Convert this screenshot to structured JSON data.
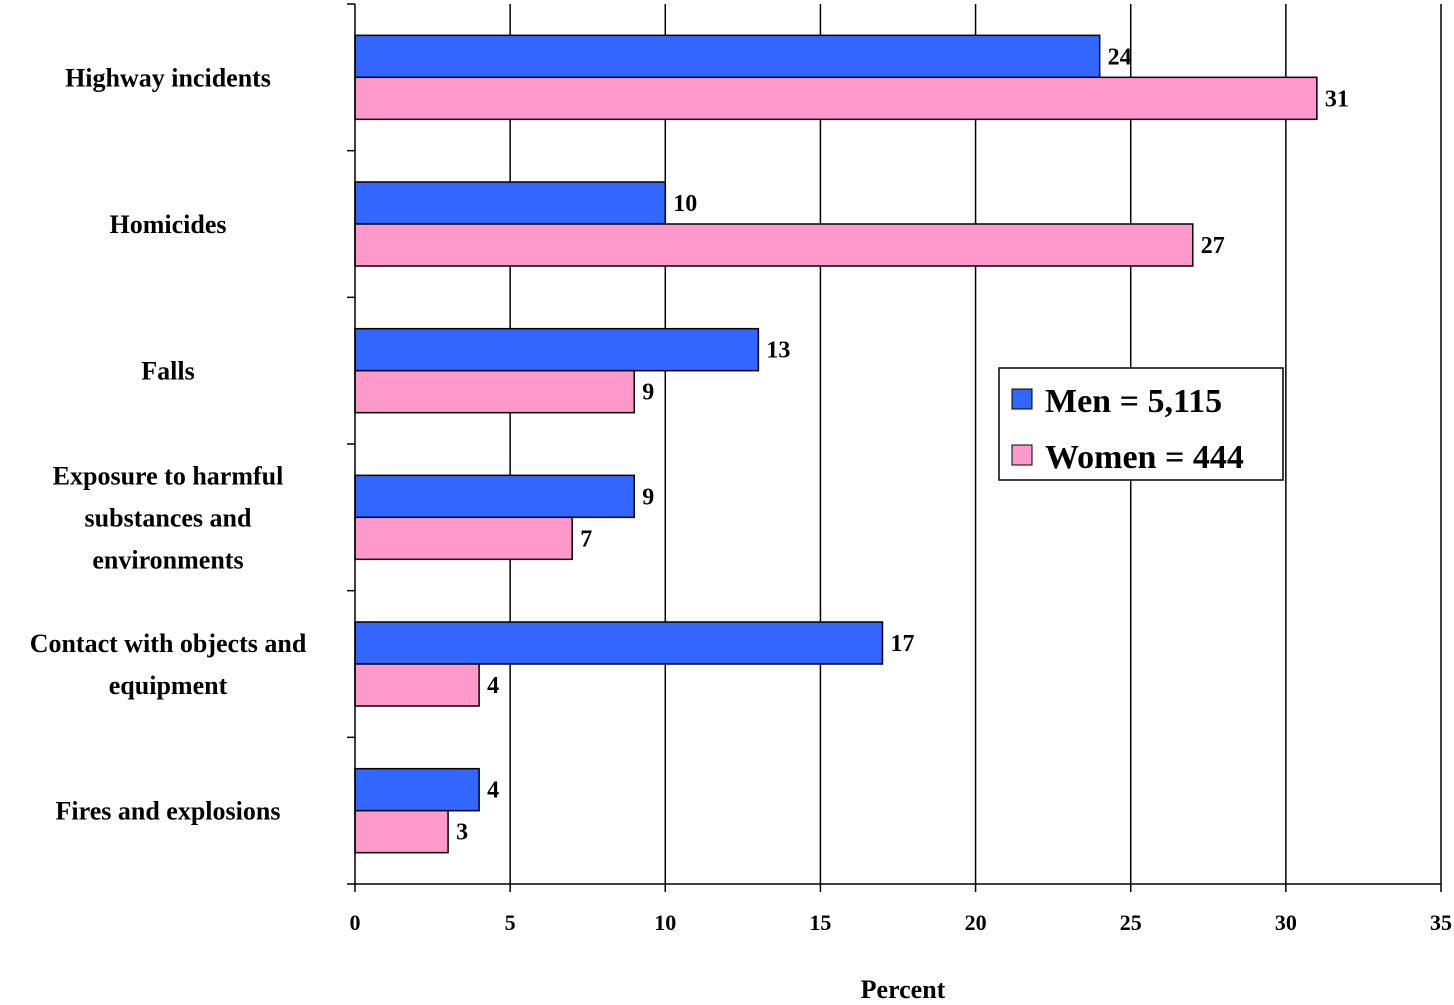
{
  "chart_data": {
    "type": "bar",
    "orientation": "horizontal",
    "title": "",
    "xlabel": "Percent",
    "ylabel": "",
    "xlim": [
      0,
      35
    ],
    "x_ticks": [
      0,
      5,
      10,
      15,
      20,
      25,
      30,
      35
    ],
    "grid": "vertical",
    "legend_position": "right",
    "categories": [
      [
        "Highway incidents"
      ],
      [
        "Homicides"
      ],
      [
        "Falls"
      ],
      [
        "Exposure to harmful",
        "substances and",
        "environments"
      ],
      [
        "Contact with objects and",
        "equipment"
      ],
      [
        "Fires and explosions"
      ]
    ],
    "series": [
      {
        "name": "Men = 5,115",
        "color": "#3366ff",
        "values": [
          24,
          10,
          13,
          9,
          17,
          4
        ]
      },
      {
        "name": "Women = 444",
        "color": "#ff99cc",
        "values": [
          31,
          27,
          9,
          7,
          4,
          3
        ]
      }
    ]
  }
}
